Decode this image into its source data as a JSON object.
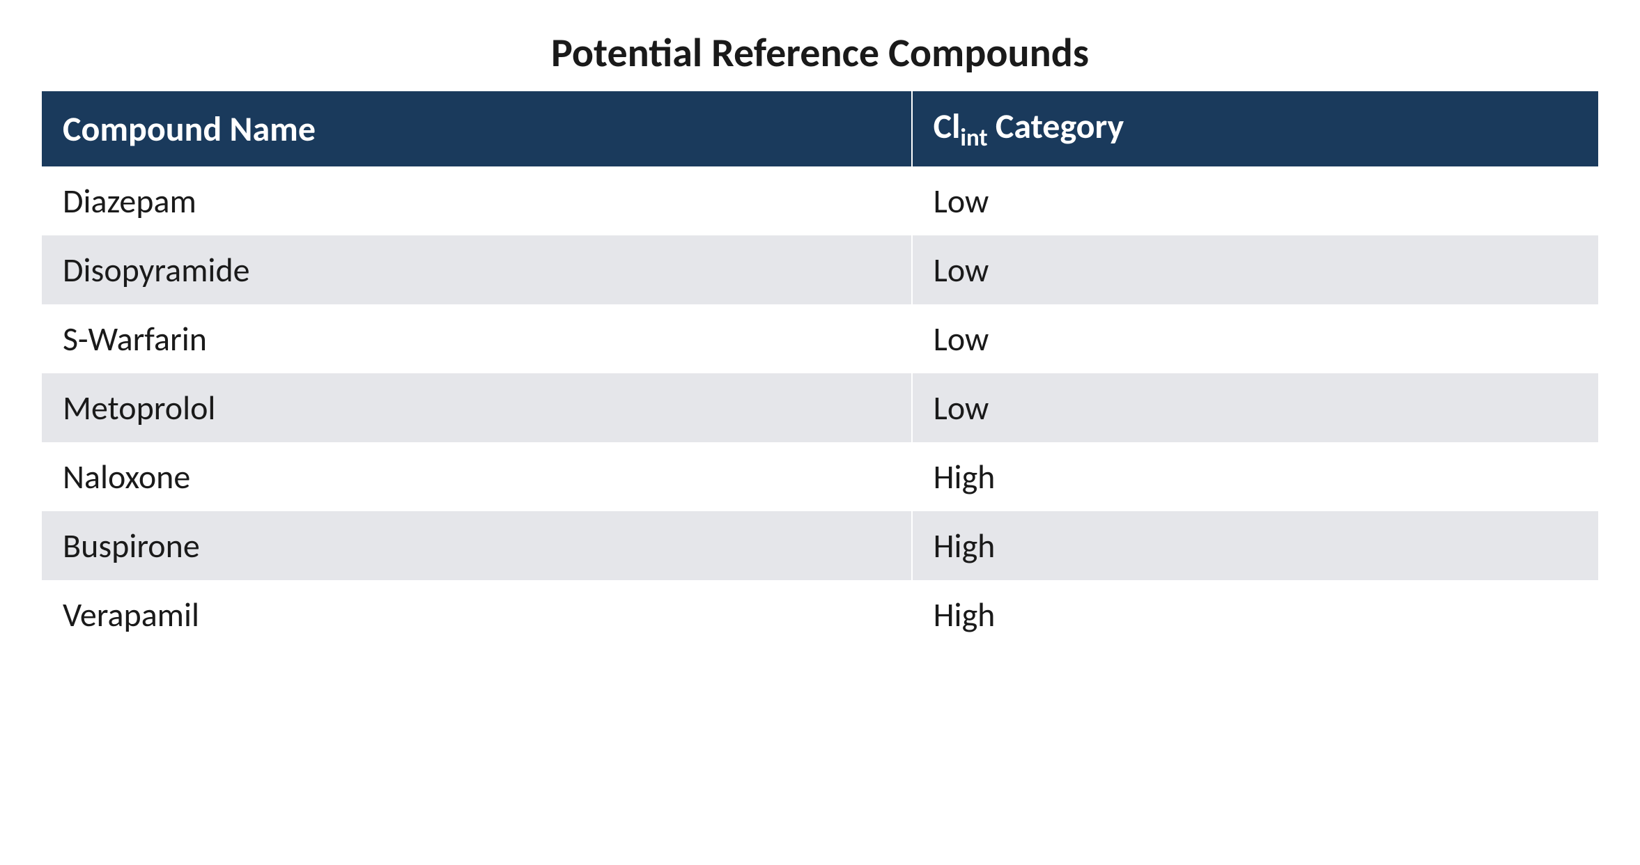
{
  "title": "Potential Reference Compounds",
  "table": {
    "type": "table",
    "header_background": "#1a3a5c",
    "header_text_color": "#ffffff",
    "row_even_background": "#e5e6ea",
    "row_odd_background": "#ffffff",
    "border_color": "#ffffff",
    "title_fontsize": 58,
    "header_fontsize": 50,
    "cell_fontsize": 48,
    "columns": [
      {
        "label_prefix": "Compound Name",
        "label_sub": "",
        "label_suffix": ""
      },
      {
        "label_prefix": "Cl",
        "label_sub": "int",
        "label_suffix": " Category"
      }
    ],
    "rows": [
      {
        "compound": "Diazepam",
        "category": "Low"
      },
      {
        "compound": "Disopyramide",
        "category": "Low"
      },
      {
        "compound": "S-Warfarin",
        "category": "Low"
      },
      {
        "compound": "Metoprolol",
        "category": "Low"
      },
      {
        "compound": "Naloxone",
        "category": "High"
      },
      {
        "compound": "Buspirone",
        "category": "High"
      },
      {
        "compound": "Verapamil",
        "category": "High"
      }
    ]
  }
}
